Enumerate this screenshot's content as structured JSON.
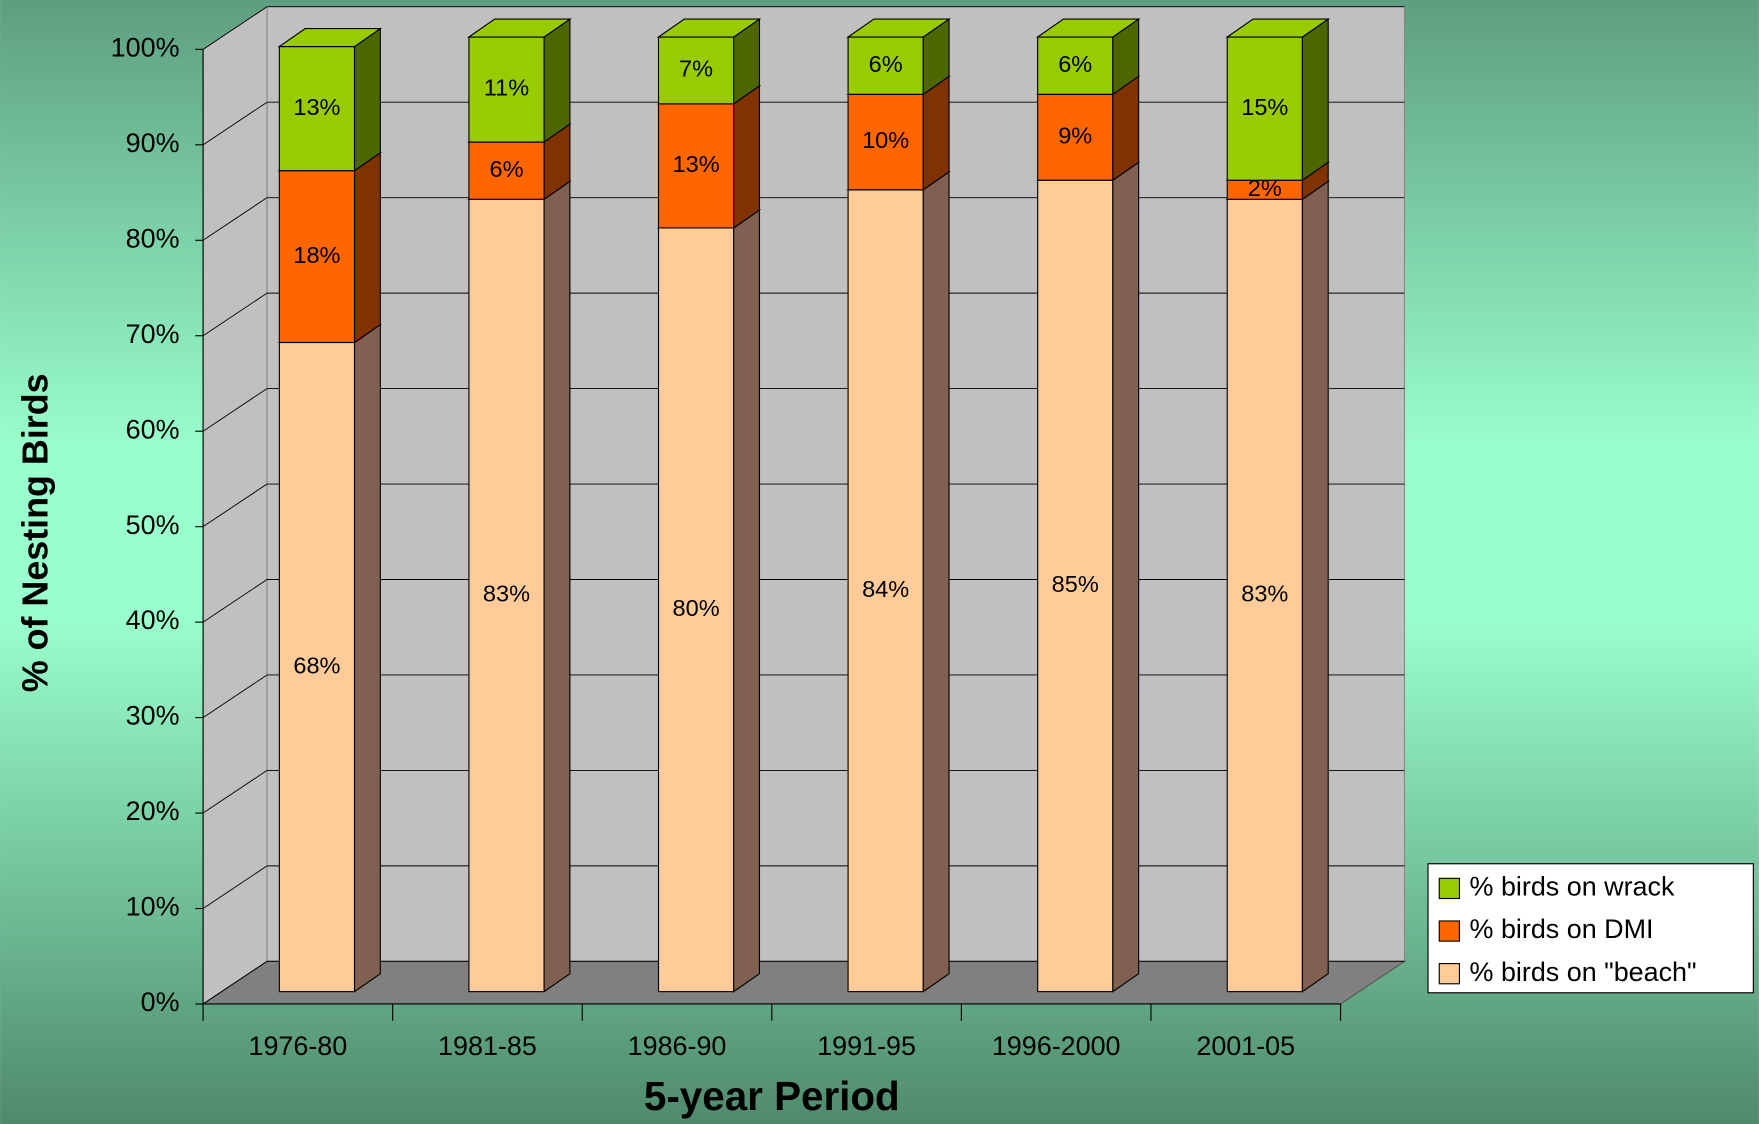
{
  "chart_data": {
    "type": "bar",
    "stacked": true,
    "three_d": true,
    "x_label": "5-year Period",
    "y_label": "% of Nesting Birds",
    "categories": [
      "1976-80",
      "1981-85",
      "1986-90",
      "1991-95",
      "1996-2000",
      "2001-05"
    ],
    "series": [
      {
        "name": "% birds on \"beach\"",
        "color": "#ffcc99",
        "side_color": "#806050",
        "values": [
          68,
          83,
          80,
          84,
          85,
          83
        ],
        "value_labels": [
          "68%",
          "83%",
          "80%",
          "84%",
          "85%",
          "83%"
        ]
      },
      {
        "name": "% birds on DMI",
        "color": "#ff6600",
        "side_color": "#803300",
        "values": [
          18,
          6,
          13,
          10,
          9,
          2
        ],
        "value_labels": [
          "18%",
          "6%",
          "13%",
          "10%",
          "9%",
          "2%"
        ]
      },
      {
        "name": "% birds on wrack",
        "color": "#99cc00",
        "side_color": "#4d6600",
        "values": [
          13,
          11,
          7,
          6,
          6,
          15
        ],
        "value_labels": [
          "13%",
          "11%",
          "7%",
          "6%",
          "6%",
          "15%"
        ]
      }
    ],
    "ylim": [
      0,
      100
    ],
    "yticks": [
      {
        "value": 0,
        "label": "0%"
      },
      {
        "value": 10,
        "label": "10%"
      },
      {
        "value": 20,
        "label": "20%"
      },
      {
        "value": 30,
        "label": "30%"
      },
      {
        "value": 40,
        "label": "40%"
      },
      {
        "value": 50,
        "label": "50%"
      },
      {
        "value": 60,
        "label": "60%"
      },
      {
        "value": 70,
        "label": "70%"
      },
      {
        "value": 80,
        "label": "80%"
      },
      {
        "value": 90,
        "label": "90%"
      },
      {
        "value": 100,
        "label": "100%"
      }
    ],
    "grid": true,
    "legend": "lower right"
  }
}
